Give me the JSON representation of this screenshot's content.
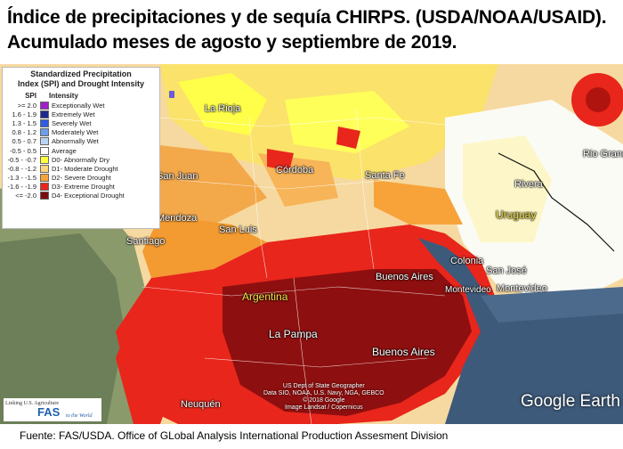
{
  "title": {
    "line1": "Índice de precipitaciones y de sequía CHIRPS. (USDA/NOAA/USAID).",
    "line2": "Acumulado meses de agosto y septiembre de 2019."
  },
  "legend": {
    "title_line1": "Standardized Precipitation",
    "title_line2": "Index (SPI) and Drought Intensity",
    "header_spi": "SPI",
    "header_intensity": "Intensity",
    "items": [
      {
        "range": ">= 2.0",
        "label": "Exceptionally Wet",
        "color": "#a020c8"
      },
      {
        "range": "1.6 - 1.9",
        "label": "Extremely Wet",
        "color": "#1b2a8f"
      },
      {
        "range": "1.3 - 1.5",
        "label": "Severely Wet",
        "color": "#2f5ce0"
      },
      {
        "range": "0.8 - 1.2",
        "label": "Moderately Wet",
        "color": "#6d9ee8"
      },
      {
        "range": "0.5 - 0.7",
        "label": "Abnormally Wet",
        "color": "#b9d3f2"
      },
      {
        "range": "-0.5 - 0.5",
        "label": "Average",
        "color": "#ffffff"
      },
      {
        "range": "-0.5 - -0.7",
        "label": "D0- Abnormally Dry",
        "color": "#ffff3c"
      },
      {
        "range": "-0.8 - -1.2",
        "label": "D1- Moderate Drought",
        "color": "#fbd47f"
      },
      {
        "range": "-1.3 - -1.5",
        "label": "D2- Severe Drought",
        "color": "#f7a33a"
      },
      {
        "range": "-1.6 - -1.9",
        "label": "D3- Extreme Drought",
        "color": "#e8261c"
      },
      {
        "range": "<= -2.0",
        "label": "D4- Exceptional Drought",
        "color": "#7a0d0d"
      }
    ]
  },
  "places": {
    "la_rioja": "La Rioja",
    "san_juan": "San Juan",
    "cordoba": "Córdoba",
    "santa_fe": "Santa Fe",
    "rivera": "Rivera",
    "rio_grande": "Rio Grand",
    "uruguay": "Uruguay",
    "mendoza": "Mendoza",
    "san_luis": "San Luis",
    "santiago": "Santiago",
    "colonia": "Colonia",
    "san_jose": "San José",
    "buenos_aires_city": "Buenos Aires",
    "montevideo_1": "Montevideo",
    "montevideo_2": "Montevideo",
    "argentina": "Argentina",
    "la_pampa": "La Pampa",
    "buenos_aires_prov": "Buenos Aires",
    "neuquen": "Neuquén"
  },
  "map_credits": {
    "line1": "US Dept of State Geographer",
    "line2": "Data SIO, NOAA, U.S. Navy, NGA, GEBCO",
    "line3": "© 2018 Google",
    "line4": "Image Landsat / Copernicus"
  },
  "google_earth": "Google Earth",
  "fas_logo": {
    "tagline": "Linking U.S. Agriculture",
    "name": "FAS",
    "subtitle": "to the World"
  },
  "source": "Fuente: FAS/USDA. Office of GLobal Analysis International  Production Assesment Division"
}
